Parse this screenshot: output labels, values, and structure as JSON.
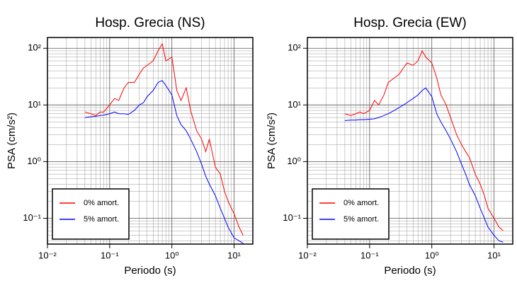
{
  "chart_data": [
    {
      "type": "line",
      "title": "Hosp. Grecia (NS)",
      "xlabel": "Periodo (s)",
      "ylabel": "PSA (cm/s²)",
      "xscale": "log",
      "yscale": "log",
      "grid": true,
      "legend": "lower left",
      "xlim": [
        0.01,
        20
      ],
      "ylim": [
        0.035,
        155
      ],
      "xticks": [
        {
          "value": 0.01,
          "label": "10⁻²"
        },
        {
          "value": 0.1,
          "label": "10⁻¹"
        },
        {
          "value": 1,
          "label": "10⁰"
        },
        {
          "value": 10,
          "label": "10¹"
        }
      ],
      "yticks": [
        {
          "value": 0.1,
          "label": "10⁻¹"
        },
        {
          "value": 1,
          "label": "10⁰"
        },
        {
          "value": 10,
          "label": "10¹"
        },
        {
          "value": 100,
          "label": "10²"
        }
      ],
      "x": [
        0.04,
        0.05,
        0.06,
        0.07,
        0.08,
        0.1,
        0.12,
        0.14,
        0.17,
        0.2,
        0.25,
        0.3,
        0.35,
        0.4,
        0.5,
        0.6,
        0.7,
        0.8,
        1.0,
        1.2,
        1.4,
        1.7,
        2.0,
        2.5,
        3.0,
        3.5,
        4.0,
        5.0,
        6.0,
        7.0,
        8.0,
        10,
        12,
        14
      ],
      "series": [
        {
          "name": "0% amort.",
          "color": "#ff0000",
          "values": [
            7.5,
            7,
            6.5,
            7.5,
            7.5,
            10,
            13,
            12,
            20,
            25,
            25,
            35,
            45,
            50,
            60,
            90,
            120,
            60,
            70,
            18,
            12,
            20,
            8,
            3.5,
            2.5,
            1.5,
            2.5,
            0.8,
            0.6,
            0.3,
            0.2,
            0.12,
            0.07,
            0.05
          ]
        },
        {
          "name": "5% amort.",
          "color": "#0000ff",
          "values": [
            6,
            6.2,
            6.3,
            6.5,
            6.6,
            7,
            7.5,
            7,
            7,
            6.8,
            8,
            10,
            11,
            14,
            18,
            25,
            27,
            22,
            15,
            6.5,
            4.5,
            3.5,
            2.5,
            1.5,
            0.9,
            0.55,
            0.4,
            0.25,
            0.15,
            0.1,
            0.07,
            0.045,
            0.04,
            0.036
          ]
        }
      ]
    },
    {
      "type": "line",
      "title": "Hosp. Grecia (EW)",
      "xlabel": "Periodo (s)",
      "ylabel": "PSA (cm/s²)",
      "xscale": "log",
      "yscale": "log",
      "grid": true,
      "legend": "lower left",
      "xlim": [
        0.01,
        20
      ],
      "ylim": [
        0.035,
        155
      ],
      "xticks": [
        {
          "value": 0.01,
          "label": "10⁻²"
        },
        {
          "value": 0.1,
          "label": "10⁻¹"
        },
        {
          "value": 1,
          "label": "10⁰"
        },
        {
          "value": 10,
          "label": "10¹"
        }
      ],
      "yticks": [
        {
          "value": 0.1,
          "label": "10⁻¹"
        },
        {
          "value": 1,
          "label": "10⁰"
        },
        {
          "value": 10,
          "label": "10¹"
        },
        {
          "value": 100,
          "label": "10²"
        }
      ],
      "x": [
        0.04,
        0.05,
        0.06,
        0.07,
        0.08,
        0.1,
        0.12,
        0.14,
        0.17,
        0.2,
        0.25,
        0.3,
        0.35,
        0.4,
        0.5,
        0.6,
        0.7,
        0.8,
        1.0,
        1.2,
        1.4,
        1.7,
        2.0,
        2.5,
        3.0,
        3.5,
        4.0,
        5.0,
        6.0,
        7.0,
        8.0,
        10,
        12,
        14
      ],
      "series": [
        {
          "name": "0% amort.",
          "color": "#ff0000",
          "values": [
            7,
            6.5,
            7,
            7.5,
            7,
            8,
            12,
            10,
            15,
            25,
            30,
            35,
            45,
            55,
            50,
            60,
            90,
            70,
            55,
            30,
            15,
            10,
            6,
            3,
            2,
            1.5,
            1.2,
            0.6,
            0.4,
            0.25,
            0.15,
            0.1,
            0.07,
            0.06
          ]
        },
        {
          "name": "5% amort.",
          "color": "#0000ff",
          "values": [
            5.3,
            5.4,
            5.4,
            5.5,
            5.5,
            5.6,
            5.7,
            6,
            6.5,
            7,
            8,
            9,
            10,
            11,
            13,
            15,
            18,
            20,
            14,
            7,
            5,
            3.5,
            2.5,
            1.5,
            0.9,
            0.6,
            0.4,
            0.25,
            0.15,
            0.1,
            0.07,
            0.05,
            0.04,
            0.038
          ]
        }
      ]
    }
  ]
}
